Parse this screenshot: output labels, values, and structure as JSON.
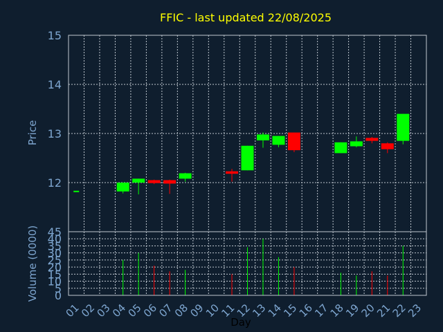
{
  "colors": {
    "background": "#0f1e2e",
    "plot_background": "#0f1e2e",
    "frame": "#c0c8d0",
    "grid": "#c0c8d0",
    "title": "#ffff00",
    "axis_text": "#7ea6d0",
    "xlabel_text": "#000000",
    "up": "#00ff00",
    "down": "#ff0000"
  },
  "chart_data": [
    {
      "type": "candlestick",
      "title": "FFIC - last updated 22/08/2025",
      "ylabel": "Price",
      "ylim": [
        11.0,
        15.0
      ],
      "yticks": [
        "12",
        "13",
        "14",
        "15"
      ],
      "grid": true,
      "series": [
        {
          "day": "01",
          "open": 11.82,
          "high": 11.82,
          "low": 11.82,
          "close": 11.82
        },
        {
          "day": "04",
          "open": 11.82,
          "high": 12.0,
          "low": 11.78,
          "close": 12.0
        },
        {
          "day": "05",
          "open": 12.0,
          "high": 12.08,
          "low": 11.76,
          "close": 12.08
        },
        {
          "day": "06",
          "open": 12.05,
          "high": 12.06,
          "low": 11.97,
          "close": 11.99
        },
        {
          "day": "07",
          "open": 12.05,
          "high": 12.06,
          "low": 11.77,
          "close": 11.98
        },
        {
          "day": "08",
          "open": 12.08,
          "high": 12.2,
          "low": 12.02,
          "close": 12.19
        },
        {
          "day": "11",
          "open": 12.23,
          "high": 12.28,
          "low": 12.02,
          "close": 12.18
        },
        {
          "day": "12",
          "open": 12.25,
          "high": 12.75,
          "low": 12.25,
          "close": 12.75
        },
        {
          "day": "13",
          "open": 12.86,
          "high": 13.02,
          "low": 12.71,
          "close": 12.98
        },
        {
          "day": "14",
          "open": 12.77,
          "high": 12.95,
          "low": 12.72,
          "close": 12.95
        },
        {
          "day": "15",
          "open": 13.02,
          "high": 13.02,
          "low": 12.62,
          "close": 12.66
        },
        {
          "day": "18",
          "open": 12.6,
          "high": 12.82,
          "low": 12.6,
          "close": 12.82
        },
        {
          "day": "19",
          "open": 12.74,
          "high": 12.94,
          "low": 12.72,
          "close": 12.84
        },
        {
          "day": "20",
          "open": 12.91,
          "high": 12.93,
          "low": 12.8,
          "close": 12.85
        },
        {
          "day": "21",
          "open": 12.8,
          "high": 12.82,
          "low": 12.6,
          "close": 12.68
        },
        {
          "day": "22",
          "open": 12.85,
          "high": 13.4,
          "low": 12.78,
          "close": 13.4
        }
      ]
    },
    {
      "type": "bar",
      "ylabel": "Volume (0000)",
      "ylim": [
        0,
        45
      ],
      "yticks": [
        "0",
        "5",
        "10",
        "15",
        "20",
        "25",
        "30",
        "35",
        "40",
        "45"
      ],
      "xlabel": "Day",
      "grid": true,
      "categories": [
        "01",
        "02",
        "03",
        "04",
        "05",
        "06",
        "07",
        "08",
        "09",
        "10",
        "11",
        "12",
        "13",
        "14",
        "15",
        "16",
        "17",
        "18",
        "19",
        "20",
        "21",
        "22",
        "23"
      ],
      "values": [
        {
          "day": "04",
          "value": 25,
          "direction": "up"
        },
        {
          "day": "05",
          "value": 30,
          "direction": "up"
        },
        {
          "day": "06",
          "value": 21,
          "direction": "down"
        },
        {
          "day": "07",
          "value": 17,
          "direction": "down"
        },
        {
          "day": "08",
          "value": 18,
          "direction": "up"
        },
        {
          "day": "11",
          "value": 15,
          "direction": "down"
        },
        {
          "day": "12",
          "value": 34,
          "direction": "up"
        },
        {
          "day": "13",
          "value": 40,
          "direction": "up"
        },
        {
          "day": "14",
          "value": 27,
          "direction": "up"
        },
        {
          "day": "15",
          "value": 20,
          "direction": "down"
        },
        {
          "day": "18",
          "value": 16,
          "direction": "up"
        },
        {
          "day": "19",
          "value": 14,
          "direction": "up"
        },
        {
          "day": "20",
          "value": 17,
          "direction": "down"
        },
        {
          "day": "21",
          "value": 14,
          "direction": "down"
        },
        {
          "day": "22",
          "value": 35,
          "direction": "up"
        }
      ]
    }
  ]
}
